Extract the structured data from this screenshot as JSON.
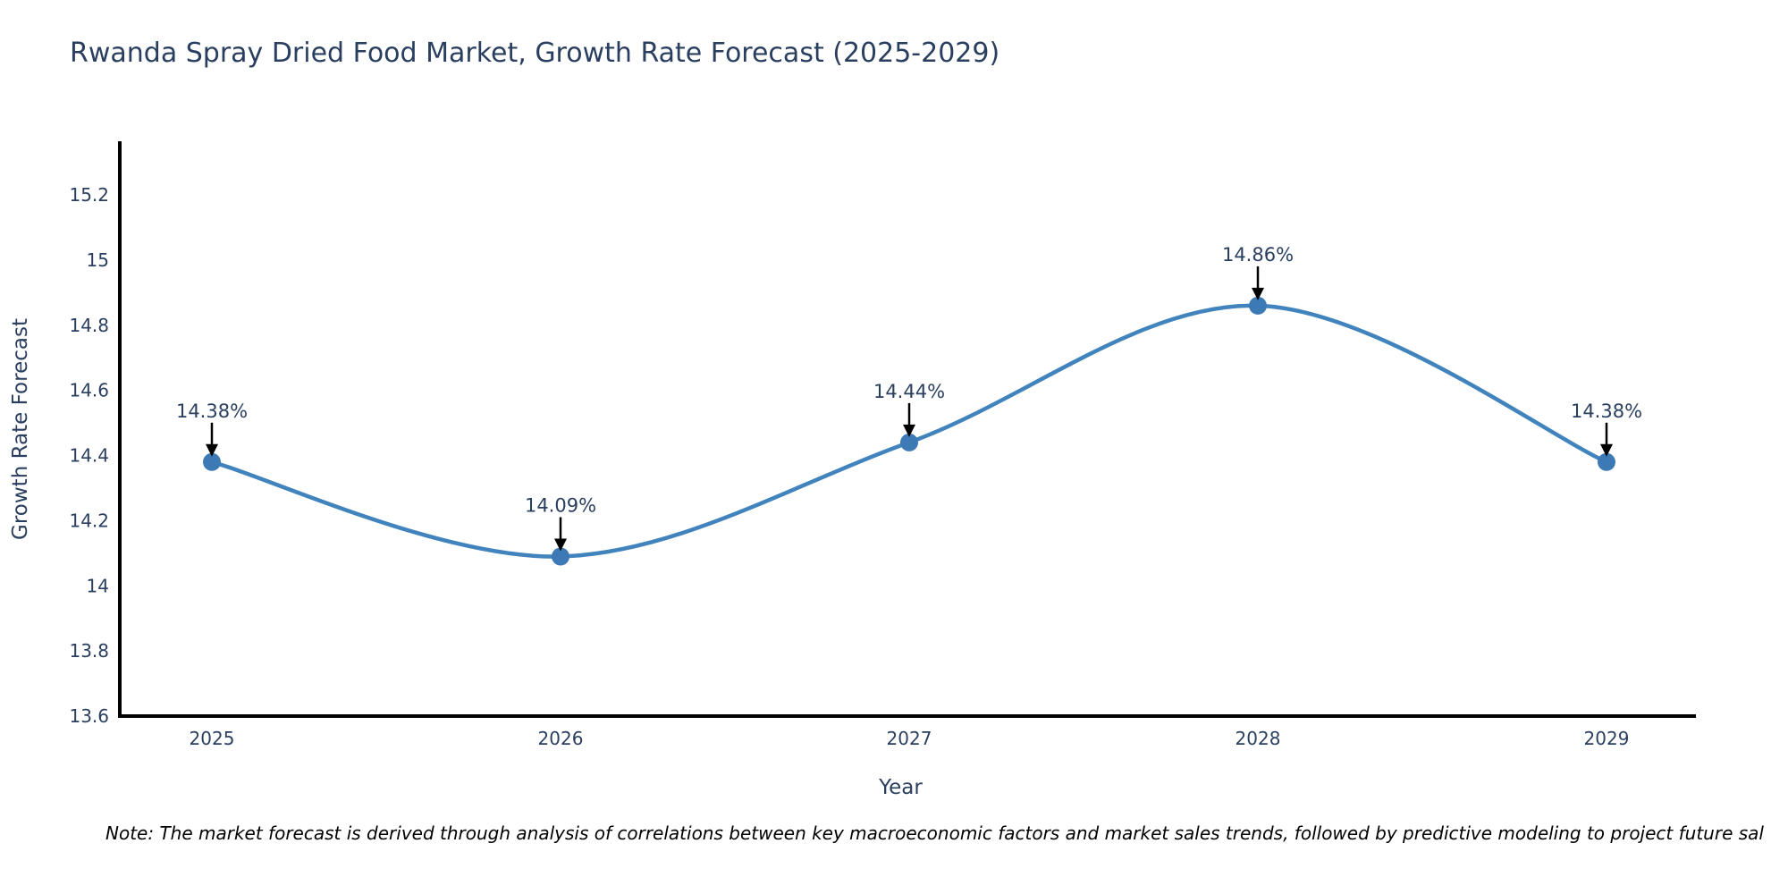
{
  "page": {
    "background": "#ffffff"
  },
  "header": {
    "title": "Rwanda Spray Dried Food Market, Growth Rate Forecast (2025-2029)"
  },
  "footer": {
    "note": "Note: The market forecast is derived through analysis of correlations between key macroeconomic factors and market sales trends, followed by predictive modeling to project future sal"
  },
  "chart_data": {
    "type": "line",
    "title": "Rwanda Spray Dried Food Market, Growth Rate Forecast (2025-2029)",
    "xlabel": "Year",
    "ylabel": "Growth Rate Forecast",
    "x": [
      2025,
      2026,
      2027,
      2028,
      2029
    ],
    "series": [
      {
        "name": "Growth Rate Forecast",
        "values": [
          14.38,
          14.09,
          14.44,
          14.86,
          14.38
        ]
      }
    ],
    "point_labels": [
      "14.38%",
      "14.09%",
      "14.44%",
      "14.86%",
      "14.38%"
    ],
    "yticks": [
      13.6,
      13.8,
      14.0,
      14.2,
      14.4,
      14.6,
      14.8,
      15.0,
      15.2
    ],
    "ylim": [
      13.6,
      15.36
    ],
    "line_shape": "spline",
    "grid": false,
    "legend_position": "none",
    "colors": {
      "line": "#4183bd",
      "marker": "#3d7ab5",
      "axis": "#000000",
      "text": "#2a3f5f",
      "arrow": "#000000"
    }
  }
}
